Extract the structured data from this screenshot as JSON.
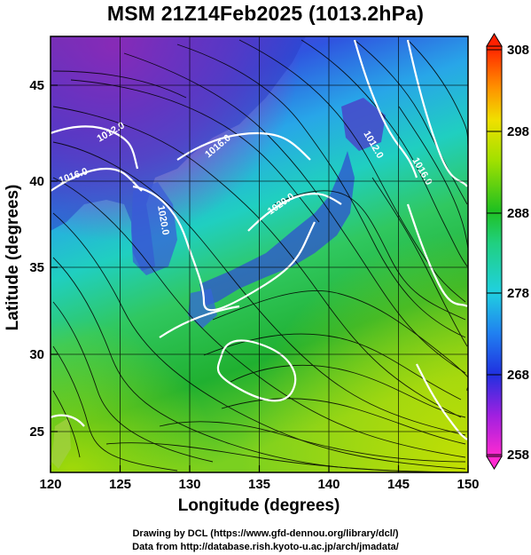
{
  "title": "MSM 21Z14Feb2025 (1013.2hPa)",
  "xaxis": {
    "label": "Longitude (degrees)",
    "ticks": [
      "120",
      "125",
      "130",
      "135",
      "140",
      "145",
      "150"
    ],
    "range": [
      120,
      150
    ]
  },
  "yaxis": {
    "label": "Latitude  (degrees)",
    "ticks": [
      "25",
      "30",
      "35",
      "40",
      "45"
    ],
    "range": [
      22.4,
      47.6
    ]
  },
  "colorbar": {
    "ticks": [
      "258",
      "268",
      "278",
      "288",
      "298",
      "308"
    ],
    "range": [
      258,
      308
    ]
  },
  "isobar_labels": [
    "1012.0",
    "1016.0",
    "1020.0",
    "1016.0",
    "1020.0",
    "1012.0",
    "1016.0"
  ],
  "credits": {
    "line1": "Drawing by DCL (https://www.gfd-dennou.org/library/dcl/)",
    "line2": "Data from http://database.rish.kyoto-u.ac.jp/arch/jmadata/"
  },
  "colors": {
    "cold": "#e0208c",
    "cool": "#2a4fd8",
    "mild": "#20c8b0",
    "warm": "#20b830",
    "hot": "#c8e000"
  }
}
